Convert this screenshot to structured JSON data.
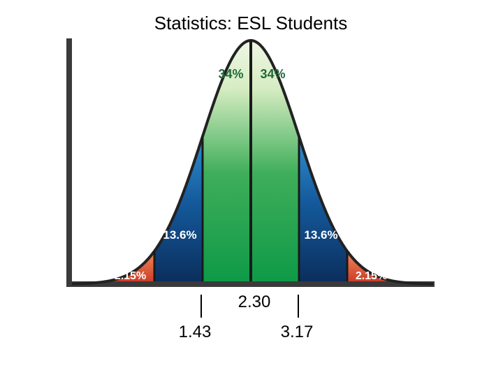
{
  "page": {
    "title": "Statistics:  ESL Students"
  },
  "chart_data": {
    "type": "area",
    "title": "Statistics:  ESL Students",
    "distribution": "normal",
    "mean": 2.3,
    "sd": 0.87,
    "bands": [
      {
        "label": "2.15%",
        "from_sd": -3,
        "to_sd": -2,
        "color": "#d9583a"
      },
      {
        "label": "13.6%",
        "from_sd": -2,
        "to_sd": -1,
        "color": "#0f3f7a"
      },
      {
        "label": "34%",
        "from_sd": -1,
        "to_sd": 0,
        "color": "#1f9a45"
      },
      {
        "label": "34%",
        "from_sd": 0,
        "to_sd": 1,
        "color": "#1f9a45"
      },
      {
        "label": "13.6%",
        "from_sd": 1,
        "to_sd": 2,
        "color": "#0f3f7a"
      },
      {
        "label": "2.15%",
        "from_sd": 2,
        "to_sd": 3,
        "color": "#d9583a"
      }
    ],
    "annotations": [
      {
        "label": "1.43",
        "value": 1.43
      },
      {
        "label": "2.30",
        "value": 2.3
      },
      {
        "label": "3.17",
        "value": 3.17
      }
    ]
  }
}
